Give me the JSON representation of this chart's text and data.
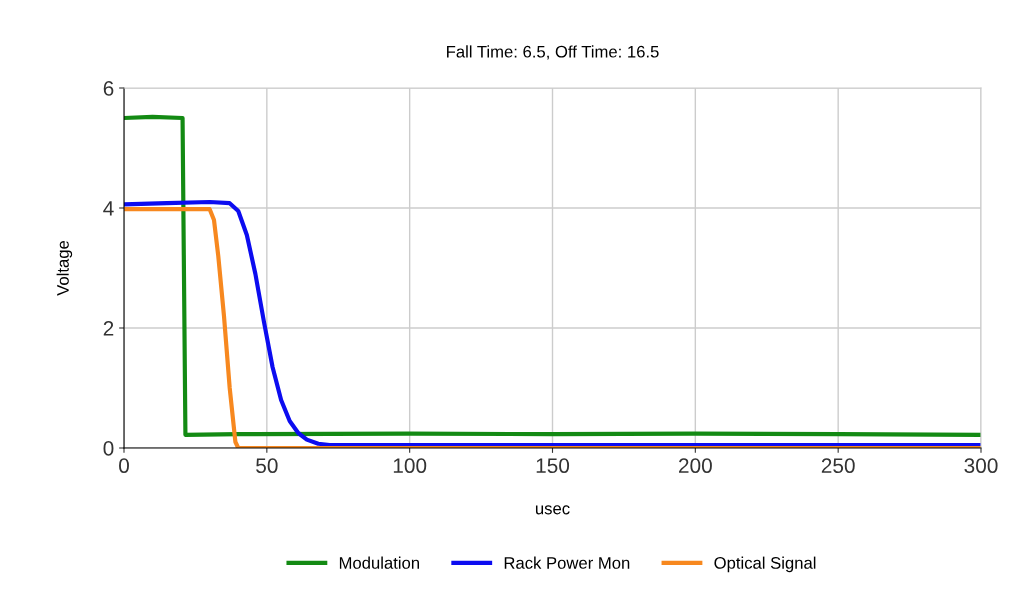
{
  "chart_data": {
    "type": "line",
    "title": "Fall Time: 6.5, Off Time: 16.5",
    "xlabel": "usec",
    "ylabel": "Voltage",
    "xlim": [
      0,
      300
    ],
    "ylim": [
      0,
      6
    ],
    "xticks": [
      0,
      50,
      100,
      150,
      200,
      250,
      300
    ],
    "yticks": [
      0,
      2,
      4,
      6
    ],
    "grid": true,
    "legend": "bottom",
    "marker": "none",
    "line_style": "solid",
    "series": [
      {
        "name": "Modulation",
        "color": "#138a13",
        "x": [
          0,
          10,
          20.5,
          21.5,
          40,
          100,
          150,
          200,
          250,
          300
        ],
        "values": [
          5.5,
          5.52,
          5.5,
          0.22,
          0.23,
          0.24,
          0.23,
          0.24,
          0.23,
          0.22
        ]
      },
      {
        "name": "Rack Power Mon",
        "color": "#0c0cf0",
        "x": [
          0,
          15,
          30,
          37,
          40,
          43,
          46,
          49,
          52,
          55,
          58,
          61,
          64,
          68,
          72,
          100,
          200,
          300
        ],
        "values": [
          4.06,
          4.08,
          4.1,
          4.08,
          3.95,
          3.55,
          2.9,
          2.1,
          1.35,
          0.8,
          0.45,
          0.25,
          0.14,
          0.07,
          0.05,
          0.05,
          0.05,
          0.05
        ]
      },
      {
        "name": "Optical Signal",
        "color": "#f7881f",
        "x": [
          0,
          20,
          30,
          31.5,
          33,
          35,
          37,
          39,
          40,
          100,
          200,
          300
        ],
        "values": [
          3.98,
          3.98,
          3.98,
          3.8,
          3.2,
          2.2,
          1.0,
          0.1,
          0.0,
          0.0,
          0.0,
          0.0
        ]
      }
    ]
  }
}
